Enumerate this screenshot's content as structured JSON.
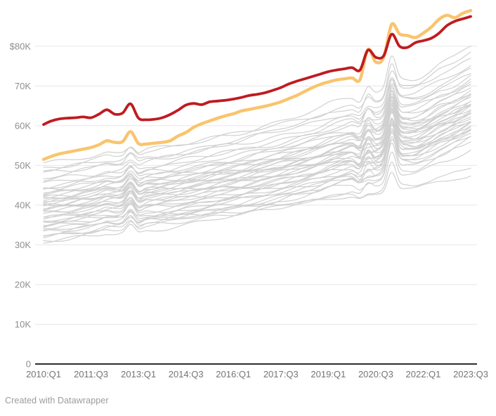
{
  "footer": {
    "text": "Created with Datawrapper"
  },
  "chart_data": {
    "type": "line",
    "title": "",
    "xlabel": "",
    "ylabel": "",
    "x_unit": "year:quarter",
    "x_range": [
      "2010:Q1",
      "2023:Q3"
    ],
    "n_points": 55,
    "ylim": [
      0,
      91.6
    ],
    "grid": "horizontal",
    "legend": "none",
    "x_tick_indices": [
      0,
      6,
      12,
      18,
      24,
      30,
      36,
      42,
      48,
      54
    ],
    "x_tick_labels": [
      "2010:Q1",
      "2011:Q3",
      "2013:Q1",
      "2014:Q3",
      "2016:Q1",
      "2017:Q3",
      "2019:Q1",
      "2020:Q3",
      "2022:Q1",
      "2023:Q3"
    ],
    "y_tick_values": [
      80,
      70,
      60,
      50,
      40,
      30,
      20,
      10,
      0
    ],
    "y_tick_labels": [
      "$80K",
      "70K",
      "60K",
      "50K",
      "40K",
      "30K",
      "20K",
      "10K",
      "0"
    ],
    "y_value_unit": "USD thousands",
    "series": [
      {
        "name": "highlighted-series-yellow",
        "color": "#fac46d",
        "stroke_width": 4.4,
        "values": [
          51.5,
          52.3,
          52.9,
          53.3,
          53.7,
          54.1,
          54.5,
          55.2,
          56.2,
          55.8,
          56.0,
          58.5,
          55.5,
          55.4,
          55.6,
          55.8,
          56.2,
          57.4,
          58.3,
          59.6,
          60.5,
          61.2,
          61.9,
          62.5,
          63.0,
          63.7,
          64.1,
          64.5,
          64.9,
          65.4,
          66.0,
          66.8,
          67.6,
          68.6,
          69.6,
          70.4,
          71.0,
          71.5,
          71.8,
          72.0,
          71.6,
          79.2,
          76.0,
          77.2,
          85.5,
          83.1,
          82.7,
          82.2,
          83.3,
          84.8,
          86.8,
          87.8,
          87.2,
          88.3,
          89.0
        ]
      },
      {
        "name": "highlighted-series-red",
        "color": "#bf1b21",
        "stroke_width": 3.8,
        "values": [
          60.3,
          61.2,
          61.7,
          61.9,
          62.0,
          62.2,
          62.0,
          62.9,
          64.0,
          62.9,
          63.2,
          65.5,
          61.9,
          61.5,
          61.6,
          62.0,
          62.8,
          63.9,
          65.2,
          65.6,
          65.3,
          66.0,
          66.2,
          66.4,
          66.7,
          67.1,
          67.6,
          67.9,
          68.3,
          68.9,
          69.6,
          70.5,
          71.2,
          71.8,
          72.4,
          73.0,
          73.6,
          74.0,
          74.3,
          74.6,
          74.0,
          79.0,
          77.2,
          77.6,
          83.0,
          80.0,
          79.7,
          80.9,
          81.4,
          82.0,
          83.3,
          85.2,
          86.3,
          86.9,
          87.5
        ]
      }
    ],
    "background_series": {
      "description": "Unlabeled gray state lines; values[i] = start + (end-start)*growth[i] + ampA*spikeA[i] + ampB*spikeB[i] + wiggleAmp*(sin(i*0.85+phase)+0.8*sin(i*0.28+phase*1.7))",
      "color": "#c5c5c5",
      "stroke_width": 1.2,
      "opacity": 0.8,
      "growth": [
        0,
        0.012,
        0.024,
        0.035,
        0.046,
        0.057,
        0.068,
        0.08,
        0.092,
        0.103,
        0.113,
        0.123,
        0.13,
        0.138,
        0.147,
        0.157,
        0.168,
        0.181,
        0.195,
        0.209,
        0.223,
        0.238,
        0.253,
        0.267,
        0.281,
        0.297,
        0.313,
        0.329,
        0.346,
        0.364,
        0.383,
        0.402,
        0.421,
        0.441,
        0.46,
        0.479,
        0.506,
        0.528,
        0.546,
        0.559,
        0.553,
        0.585,
        0.59,
        0.615,
        0.69,
        0.705,
        0.715,
        0.735,
        0.762,
        0.792,
        0.828,
        0.868,
        0.91,
        0.956,
        1
      ],
      "spikeA": [
        0,
        0,
        0,
        0,
        0,
        0,
        0,
        0.2,
        0.5,
        0,
        0.2,
        2,
        -0.3,
        0,
        0,
        0,
        0,
        0,
        0,
        0,
        0,
        0,
        0,
        0,
        0,
        0,
        0,
        0,
        0,
        0,
        0,
        0,
        0,
        0,
        0,
        0,
        0,
        0,
        0,
        0,
        -0.4,
        2.6,
        0.6,
        1.2,
        7,
        1.4,
        0.4,
        0,
        0,
        0.3,
        0.6,
        0.3,
        0,
        0,
        0
      ],
      "spikeB": [
        0,
        0,
        0,
        0,
        0,
        0,
        0,
        0,
        0,
        0,
        0,
        1,
        -0.3,
        0,
        0,
        0,
        0,
        0,
        0,
        0,
        0,
        0,
        0,
        0,
        0,
        0,
        0,
        0,
        0,
        0,
        0,
        0,
        0,
        0,
        0,
        0,
        0,
        0,
        0,
        0,
        -1,
        -2.6,
        -1,
        0.4,
        6,
        0.6,
        0,
        -0.3,
        0,
        0,
        0,
        0,
        0.4,
        0,
        0
      ],
      "columns": [
        "start",
        "end",
        "ampA",
        "ampB",
        "phase",
        "wiggleAmp"
      ],
      "params": [
        [
          50.2,
          76.8,
          0.7,
          0.0,
          0.5,
          0.4
        ],
        [
          49.3,
          80.5,
          0.9,
          0.0,
          2.1,
          0.5
        ],
        [
          48.5,
          75.2,
          0.5,
          0.3,
          4.0,
          0.4
        ],
        [
          47.8,
          73.5,
          0.6,
          0.0,
          1.2,
          0.5
        ],
        [
          46.9,
          78.6,
          1.0,
          0.0,
          3.3,
          0.4
        ],
        [
          46.2,
          71.8,
          0.4,
          0.5,
          5.1,
          0.5
        ],
        [
          45.1,
          74.6,
          0.8,
          0.0,
          0.9,
          0.4
        ],
        [
          44.6,
          69.7,
          0.5,
          0.6,
          2.8,
          0.5
        ],
        [
          44.1,
          72.9,
          1.1,
          0.0,
          4.6,
          0.4
        ],
        [
          43.6,
          68.4,
          0.6,
          0.4,
          1.7,
          0.5
        ],
        [
          43.2,
          71.2,
          0.9,
          0.0,
          3.9,
          0.4
        ],
        [
          42.8,
          67.3,
          0.5,
          0.7,
          5.8,
          0.5
        ],
        [
          42.4,
          70.1,
          1.2,
          0.0,
          0.3,
          0.4
        ],
        [
          42.0,
          66.4,
          0.6,
          0.5,
          2.4,
          0.5
        ],
        [
          41.7,
          69.0,
          1.0,
          0.0,
          4.2,
          0.4
        ],
        [
          41.4,
          65.6,
          0.5,
          0.8,
          1.0,
          0.5
        ],
        [
          41.1,
          68.1,
          1.3,
          0.0,
          3.0,
          0.4
        ],
        [
          40.8,
          64.9,
          0.6,
          0.6,
          5.4,
          0.5
        ],
        [
          40.5,
          67.2,
          1.1,
          0.0,
          0.7,
          0.4
        ],
        [
          40.2,
          64.2,
          0.5,
          0.9,
          2.6,
          0.5
        ],
        [
          39.9,
          66.3,
          1.2,
          0.0,
          4.8,
          0.4
        ],
        [
          39.6,
          63.5,
          0.6,
          0.7,
          1.5,
          0.5
        ],
        [
          39.3,
          65.5,
          1.0,
          0.0,
          3.6,
          0.4
        ],
        [
          39.0,
          62.8,
          0.5,
          1.0,
          5.9,
          0.5
        ],
        [
          38.7,
          64.7,
          1.3,
          0.0,
          0.2,
          0.4
        ],
        [
          38.4,
          62.1,
          0.6,
          0.8,
          2.2,
          0.5
        ],
        [
          38.0,
          63.9,
          1.1,
          0.0,
          4.4,
          0.4
        ],
        [
          37.6,
          61.4,
          0.5,
          0.9,
          1.3,
          0.5
        ],
        [
          37.2,
          63.1,
          1.2,
          0.0,
          3.1,
          0.4
        ],
        [
          36.8,
          60.7,
          0.6,
          0.7,
          5.6,
          0.5
        ],
        [
          36.4,
          62.3,
          1.0,
          0.0,
          0.8,
          0.4
        ],
        [
          36.0,
          60.0,
          0.5,
          1.0,
          2.9,
          0.5
        ],
        [
          35.9,
          47.4,
          0.3,
          0.4,
          4.1,
          0.3
        ],
        [
          35.6,
          61.5,
          1.1,
          0.0,
          1.9,
          0.4
        ],
        [
          35.1,
          59.3,
          0.6,
          0.8,
          3.8,
          0.5
        ],
        [
          34.6,
          60.8,
          1.2,
          0.0,
          5.2,
          0.4
        ],
        [
          34.1,
          58.6,
          0.5,
          0.9,
          0.4,
          0.5
        ],
        [
          33.9,
          49.6,
          0.4,
          0.5,
          2.0,
          0.3
        ],
        [
          33.6,
          59.9,
          1.0,
          0.0,
          4.9,
          0.4
        ],
        [
          33.1,
          57.8,
          0.6,
          0.7,
          1.6,
          0.5
        ],
        [
          32.6,
          58.9,
          1.1,
          0.0,
          3.4,
          0.4
        ],
        [
          32.1,
          57.0,
          0.5,
          0.8,
          5.7,
          0.5
        ],
        [
          31.6,
          58.0,
          0.9,
          0.0,
          0.6,
          0.4
        ],
        [
          31.1,
          56.2,
          0.5,
          0.6,
          2.5,
          0.5
        ],
        [
          30.5,
          54.0,
          0.7,
          0.3,
          4.3,
          0.4
        ]
      ]
    },
    "layout_colors": {
      "gridline": "#e7e7e7",
      "baseline": "#2e2e2e",
      "y_tick_label": "#8e8e8e",
      "x_tick_label": "#757575",
      "attribution": "#9b9b9b",
      "background": "#ffffff"
    }
  }
}
